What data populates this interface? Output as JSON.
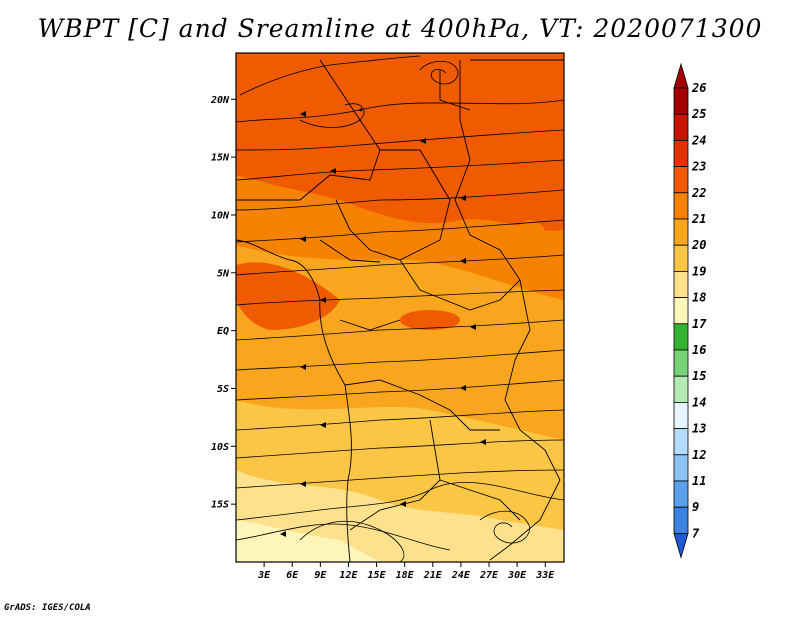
{
  "title": "WBPT [C] and Sreamline at 400hPa, VT: 2020071300",
  "credit": "GrADS: IGES/COLA",
  "map": {
    "lon_range": [
      0,
      35
    ],
    "lat_range": [
      -20,
      24
    ],
    "variable": "Wet-bulb potential temperature (°C)",
    "overlay": "Streamlines at 400hPa",
    "x_ticks": [
      "3E",
      "6E",
      "9E",
      "12E",
      "15E",
      "18E",
      "21E",
      "24E",
      "27E",
      "30E",
      "33E"
    ],
    "y_ticks": [
      "20N",
      "15N",
      "10N",
      "5N",
      "EQ",
      "5S",
      "10S",
      "15S"
    ]
  },
  "colorbar": {
    "labels": [
      "26",
      "25",
      "24",
      "23",
      "22",
      "21",
      "20",
      "19",
      "18",
      "17",
      "16",
      "15",
      "14",
      "13",
      "12",
      "11",
      "9",
      "7"
    ],
    "colors": [
      "#a50000",
      "#c81400",
      "#e13200",
      "#f05a00",
      "#f58200",
      "#f9a51e",
      "#fbc546",
      "#fde18c",
      "#fef5b9",
      "#32b432",
      "#78d278",
      "#b4ebb4",
      "#e6f5ff",
      "#b4dcff",
      "#8cc3f5",
      "#5aa0eb",
      "#3c82e1",
      "#1e5ad2"
    ]
  }
}
